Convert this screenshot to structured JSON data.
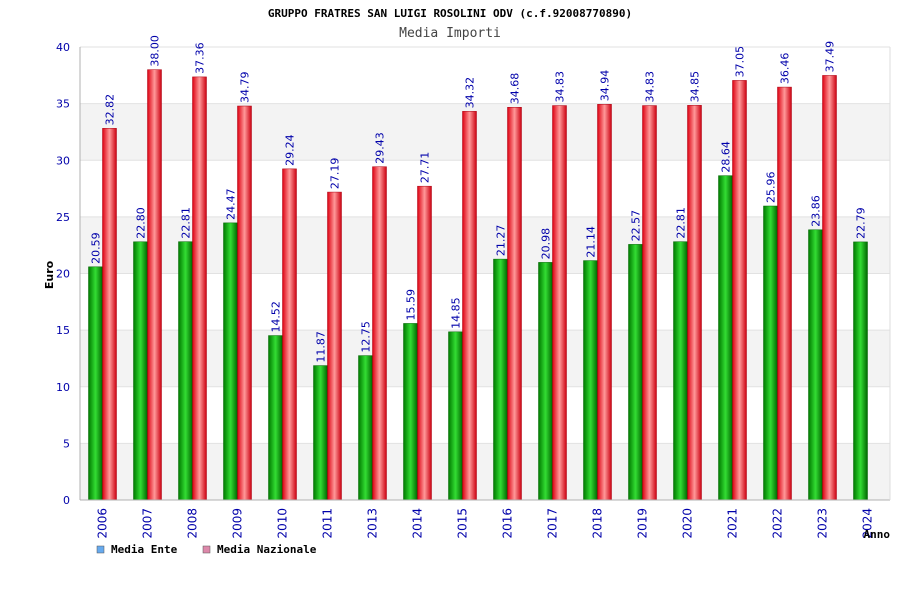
{
  "chart_data": {
    "type": "bar",
    "title": "GRUPPO FRATRES SAN LUIGI ROSOLINI ODV (c.f.92008770890)",
    "subtitle": "Media Importi",
    "xlabel": "Anno",
    "ylabel": "Euro",
    "ylim": [
      0,
      40
    ],
    "yticks": [
      0,
      5,
      10,
      15,
      20,
      25,
      30,
      35,
      40
    ],
    "grid": true,
    "legend_position": "bottom-left",
    "categories": [
      "2006",
      "2007",
      "2008",
      "2009",
      "2010",
      "2011",
      "2013",
      "2014",
      "2015",
      "2016",
      "2017",
      "2018",
      "2019",
      "2020",
      "2021",
      "2022",
      "2023",
      "2024"
    ],
    "series": [
      {
        "name": "Media Ente",
        "color": "#00aa00",
        "legend_color": "#66aaee",
        "values": [
          20.59,
          22.8,
          22.81,
          24.47,
          14.52,
          11.87,
          12.75,
          15.59,
          14.85,
          21.27,
          20.98,
          21.14,
          22.57,
          22.81,
          28.64,
          25.96,
          23.86,
          22.79
        ],
        "labels": [
          "20.59",
          "22.80",
          "22.81",
          "24.47",
          "14.52",
          "11.87",
          "12.75",
          "15.59",
          "14.85",
          "21.27",
          "20.98",
          "21.14",
          "22.57",
          "22.81",
          "28.64",
          "25.96",
          "23.86",
          "22.79"
        ]
      },
      {
        "name": "Media Nazionale",
        "color": "#ee1122",
        "legend_color": "#dd88aa",
        "values": [
          32.82,
          38.0,
          37.36,
          34.79,
          29.24,
          27.19,
          29.43,
          27.71,
          34.32,
          34.68,
          34.83,
          34.94,
          34.83,
          34.85,
          37.05,
          36.46,
          37.49,
          null
        ],
        "labels": [
          "32.82",
          "38.00",
          "37.36",
          "34.79",
          "29.24",
          "27.19",
          "29.43",
          "27.71",
          "34.32",
          "34.68",
          "34.83",
          "34.94",
          "34.83",
          "34.85",
          "37.05",
          "36.46",
          "37.49",
          null
        ]
      }
    ]
  }
}
